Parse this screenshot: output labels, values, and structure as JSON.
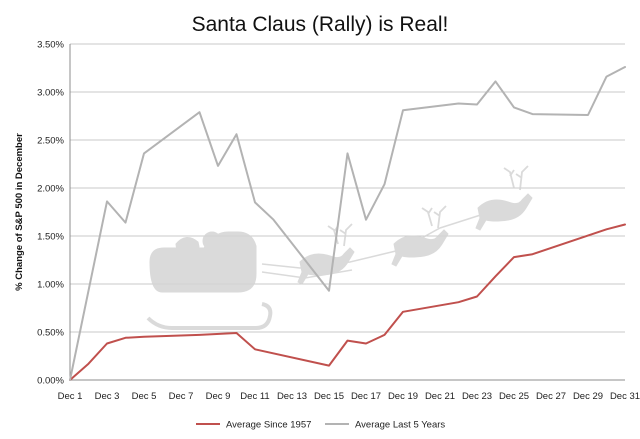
{
  "chart_data": {
    "type": "line",
    "title": "Santa Claus (Rally) is Real!",
    "xlabel": "",
    "ylabel": "% Change of S&P 500 in December",
    "ylim": [
      0,
      0.035
    ],
    "y_ticks": [
      0,
      0.005,
      0.01,
      0.015,
      0.02,
      0.025,
      0.03,
      0.035
    ],
    "y_tick_labels": [
      "0.00%",
      "0.50%",
      "1.00%",
      "1.50%",
      "2.00%",
      "2.50%",
      "3.00%",
      "3.50%"
    ],
    "x_tick_labels": [
      "Dec 1",
      "Dec 3",
      "Dec 5",
      "Dec 7",
      "Dec 9",
      "Dec 11",
      "Dec 13",
      "Dec 15",
      "Dec 17",
      "Dec 19",
      "Dec 21",
      "Dec 23",
      "Dec 25",
      "Dec 27",
      "Dec 29",
      "Dec 31"
    ],
    "x_range": [
      1,
      31
    ],
    "grid": true,
    "legend_position": "bottom",
    "series": [
      {
        "name": "Average Since 1957",
        "color": "#c0504d",
        "x": [
          1,
          2,
          3,
          4,
          5,
          8,
          10,
          11,
          15,
          16,
          17,
          18,
          19,
          22,
          23,
          24,
          25,
          26,
          30,
          31
        ],
        "values": [
          0.0,
          0.0017,
          0.0038,
          0.0044,
          0.0045,
          0.0047,
          0.0049,
          0.0032,
          0.0015,
          0.0041,
          0.0038,
          0.0047,
          0.0071,
          0.0081,
          0.0087,
          0.0108,
          0.0128,
          0.0131,
          0.0157,
          0.0162
        ]
      },
      {
        "name": "Average Last 5 Years",
        "color": "#b3b3b3",
        "x": [
          1,
          3,
          4,
          5,
          8,
          9,
          10,
          11,
          12,
          15,
          16,
          17,
          18,
          19,
          22,
          23,
          24,
          25,
          26,
          29,
          30,
          31
        ],
        "values": [
          0.0,
          0.0186,
          0.0164,
          0.0236,
          0.0279,
          0.0223,
          0.0256,
          0.0185,
          0.0167,
          0.0093,
          0.0236,
          0.0167,
          0.0204,
          0.0281,
          0.0288,
          0.0287,
          0.0311,
          0.0284,
          0.0277,
          0.0276,
          0.0316,
          0.0326
        ]
      }
    ]
  }
}
